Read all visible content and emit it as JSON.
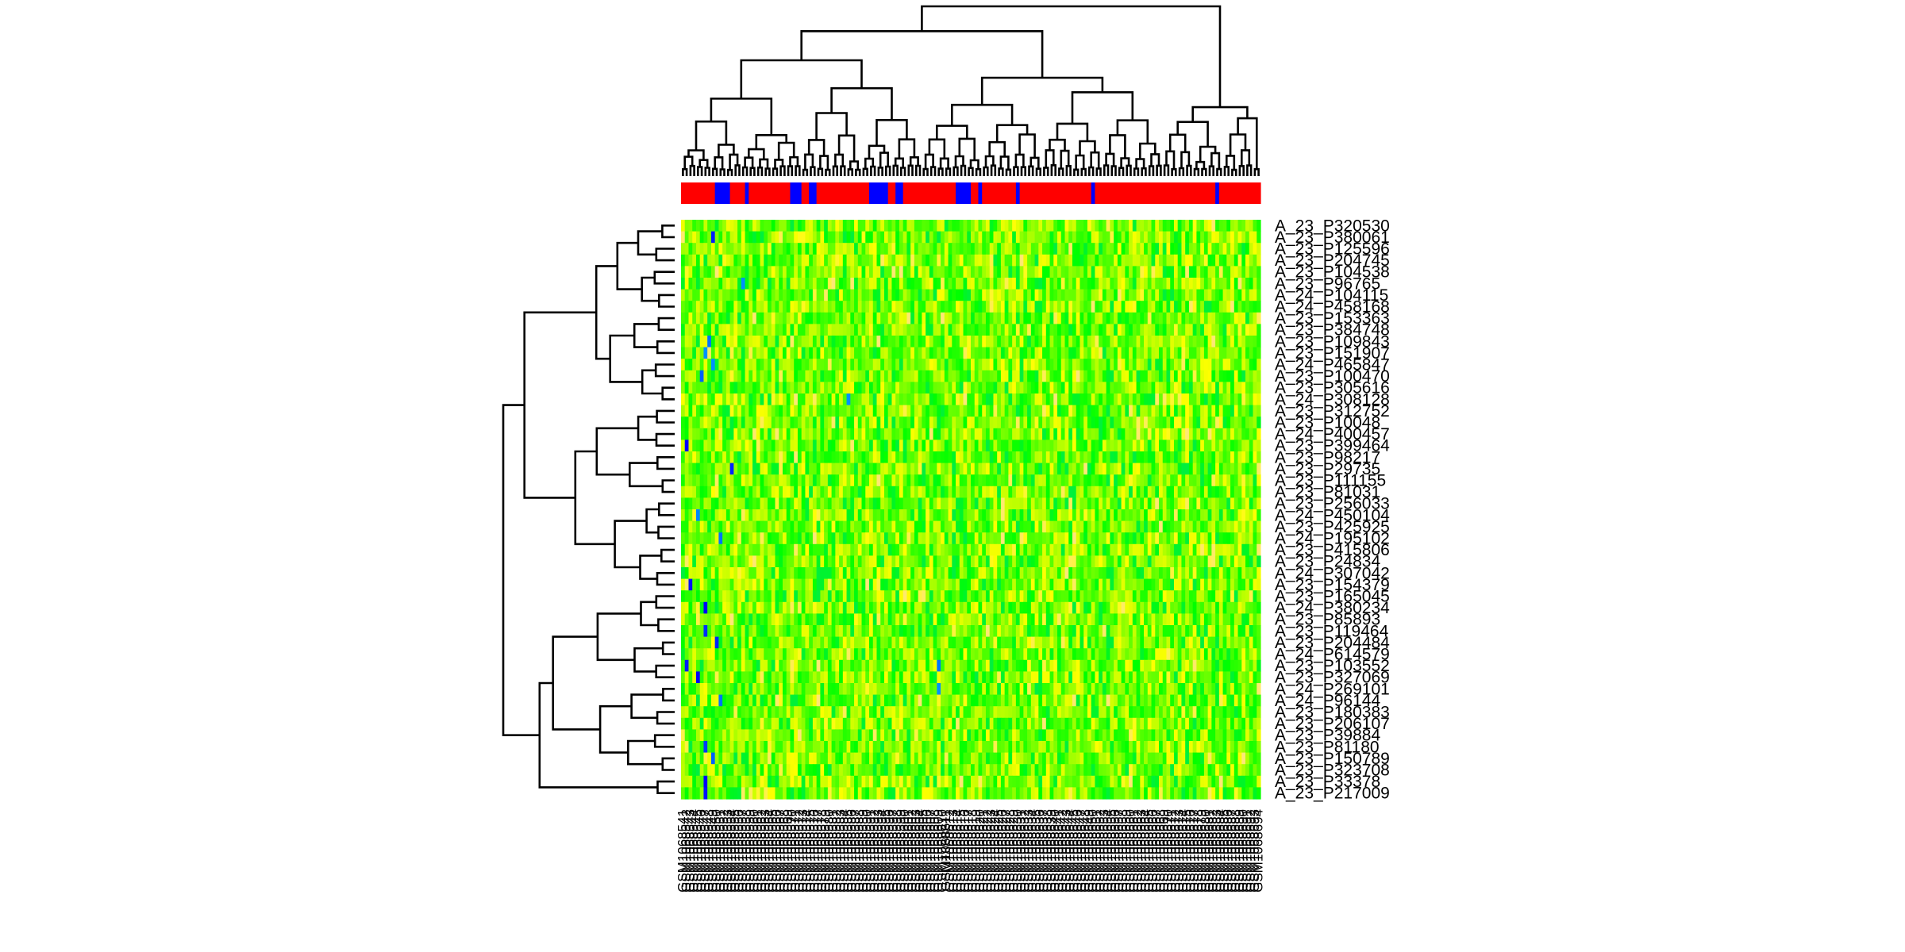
{
  "chart_data": {
    "type": "heatmap",
    "title": "",
    "xlabel": "",
    "ylabel": "",
    "row_labels": [
      "A_23_P320530",
      "A_23_P380061",
      "A_23_P125596",
      "A_23_P204745",
      "A_23_P104538",
      "A_23_P96765",
      "A_24_P104115",
      "A_24_P458168",
      "A_23_P153363",
      "A_23_P384748",
      "A_23_P109843",
      "A_23_P151907",
      "A_24_P465847",
      "A_23_P100470",
      "A_23_P305616",
      "A_24_P308128",
      "A_23_P312752",
      "A_23_P10048",
      "A_24_P400457",
      "A_23_P399464",
      "A_23_P98217",
      "A_23_P29735",
      "A_23_P111155",
      "A_23_P81031",
      "A_23_P256033",
      "A_24_P450104",
      "A_23_P425925",
      "A_24_P195102",
      "A_23_P415806",
      "A_23_P24834",
      "A_24_P307042",
      "A_23_P154379",
      "A_23_P165045",
      "A_24_P380234",
      "A_23_P85893",
      "A_23_P119464",
      "A_23_P204484",
      "A_24_P614579",
      "A_23_P103552",
      "A_23_P327069",
      "A_24_P269101",
      "A_24_P96144",
      "A_23_P180383",
      "A_23_P206107",
      "A_23_P39884",
      "A_23_P81180",
      "A_23_P150789",
      "A_23_P323708",
      "A_23_P33378",
      "A_23_P217009"
    ],
    "column_labels": [
      "GSM1068541",
      "GSM1068542",
      "GSM1068543",
      "GSM1068544",
      "GSM1068545",
      "GSM1068546",
      "GSM1068547",
      "GSM1068548",
      "GSM1068549",
      "GSM1068550",
      "GSM1068551",
      "GSM1068552",
      "GSM1068553",
      "GSM1068554",
      "GSM1068555",
      "GSM1068556",
      "GSM1068557",
      "GSM1068558",
      "GSM1068559",
      "GSM1068560",
      "GSM1068561",
      "GSM1068562",
      "GSM1068563",
      "GSM1068564",
      "GSM1068565",
      "GSM1068566",
      "GSM1068567",
      "GSM1068568",
      "GSM1068569",
      "GSM1068570",
      "GSM1068571",
      "GSM1068572",
      "GSM1068573",
      "GSM1068574",
      "GSM1068575",
      "GSM1068576",
      "GSM1068577",
      "GSM1068578",
      "GSM1068579",
      "GSM1068580",
      "GSM1068581",
      "GSM1068582",
      "GSM1068583",
      "GSM1068584",
      "GSM1068585",
      "GSM1068586",
      "GSM1068587",
      "GSM1068588",
      "GSM1068589",
      "GSM1068590",
      "GSM1068591",
      "GSM1068592",
      "GSM1068593",
      "GSM1068594",
      "GSM1068595",
      "GSM1068596",
      "GSM1068597",
      "GSM1068598",
      "GSM1068599",
      "GSM1068600",
      "GSM1068601",
      "GSM1068602",
      "GSM1068603",
      "GSM1068604",
      "GSM1068605",
      "GSM1068606",
      "GSM1068607",
      "GSM1068608",
      "GSM1068609",
      "GSM1068610",
      "GSM1068611",
      "GSM1068612",
      "GSM1068613",
      "GSM1068614",
      "GSM1068615",
      "GSM1068616",
      "GSM1068617",
      "GSM1068618",
      "GSM1068619",
      "GSM1068620",
      "GSM1068621",
      "GSM1068622",
      "GSM1068623",
      "GSM1068624",
      "GSM1068625",
      "GSM1068626",
      "GSM1068627",
      "GSM1068628",
      "GSM1068629",
      "GSM1068630",
      "GSM1068631",
      "GSM1068632",
      "GSM1068633",
      "GSM1068634",
      "GSM1068635",
      "GSM1068636",
      "GSM1068637",
      "GSM1068638",
      "GSM1068639",
      "GSM1068640",
      "GSM1068641",
      "GSM1068642",
      "GSM1068643",
      "GSM1068644",
      "GSM1068645",
      "GSM1068646",
      "GSM1068647",
      "GSM1068648",
      "GSM1068649",
      "GSM1068650",
      "GSM1068651",
      "GSM1068652",
      "GSM1068653",
      "GSM1068654",
      "GSM1068655",
      "GSM1068656",
      "GSM1068657",
      "GSM1068658",
      "GSM1068659",
      "GSM1068660",
      "GSM1068661",
      "GSM1068662",
      "GSM1068663",
      "GSM1068664",
      "GSM1068665",
      "GSM1068666",
      "GSM1068667",
      "GSM1068668",
      "GSM1068669",
      "GSM1068670",
      "GSM1068671",
      "GSM1068672",
      "GSM1068673",
      "GSM1068674",
      "GSM1068675",
      "GSM1068676",
      "GSM1068677",
      "GSM1068678",
      "GSM1068679",
      "GSM1068680",
      "GSM1068681",
      "GSM1068682",
      "GSM1068683",
      "GSM1068684",
      "GSM1068685",
      "GSM1068686",
      "GSM1068687",
      "GSM1068688",
      "GSM1068689",
      "GSM1068690",
      "GSM1068691",
      "GSM1068692",
      "GSM1068693",
      "GSM1068694"
    ],
    "column_group_colors": {
      "group_a": "#ff0000",
      "group_b": "#0000ff"
    },
    "column_group_b_indices": [
      9,
      10,
      11,
      12,
      17,
      29,
      30,
      31,
      34,
      35,
      50,
      51,
      52,
      53,
      54,
      57,
      58,
      73,
      74,
      75,
      76,
      79,
      89,
      109,
      142
    ],
    "color_scale": [
      "#0000ff",
      "#00c0ff",
      "#00ff00",
      "#80ff00",
      "#ffff00",
      "#ffe0a0"
    ],
    "value_range": [
      0,
      1
    ],
    "dendrograms": {
      "rows": true,
      "columns": true
    },
    "legend": "none",
    "grid": false
  }
}
